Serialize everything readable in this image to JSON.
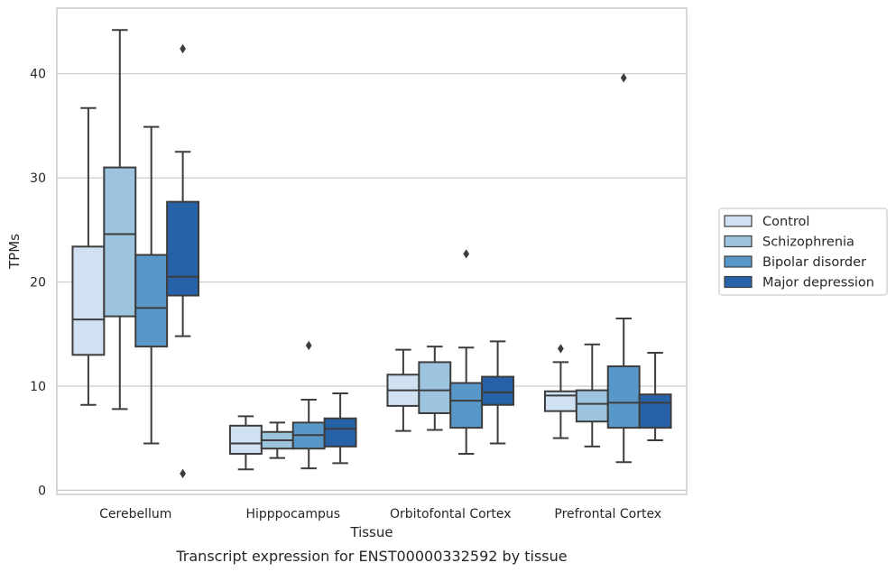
{
  "chart_data": {
    "type": "box",
    "title": "",
    "caption": "Transcript expression for ENST00000332592 by tissue",
    "xlabel": "Tissue",
    "ylabel": "TPMs",
    "ylim": [
      -0.4,
      46.3
    ],
    "yticks": [
      0,
      10,
      20,
      30,
      40
    ],
    "grid": "horizontal",
    "legend_position": "right",
    "categories": [
      "Cerebellum",
      "Hipppocampus",
      "Orbitofontal Cortex",
      "Prefrontal Cortex"
    ],
    "series": [
      {
        "name": "Control",
        "color": "#d0e1f2",
        "boxes": [
          {
            "whislo": 8.2,
            "q1": 13.0,
            "med": 16.4,
            "q3": 23.4,
            "whishi": 36.7,
            "fliers": []
          },
          {
            "whislo": 2.0,
            "q1": 3.5,
            "med": 4.5,
            "q3": 6.2,
            "whishi": 7.1,
            "fliers": []
          },
          {
            "whislo": 5.7,
            "q1": 8.1,
            "med": 9.6,
            "q3": 11.1,
            "whishi": 13.5,
            "fliers": []
          },
          {
            "whislo": 5.0,
            "q1": 7.6,
            "med": 9.1,
            "q3": 9.5,
            "whishi": 12.3,
            "fliers": [
              13.6
            ]
          }
        ]
      },
      {
        "name": "Schizophrenia",
        "color": "#9cc4df",
        "boxes": [
          {
            "whislo": 7.8,
            "q1": 16.7,
            "med": 24.6,
            "q3": 31.0,
            "whishi": 44.2,
            "fliers": []
          },
          {
            "whislo": 3.1,
            "q1": 4.0,
            "med": 4.8,
            "q3": 5.6,
            "whishi": 6.5,
            "fliers": []
          },
          {
            "whislo": 5.8,
            "q1": 7.4,
            "med": 9.6,
            "q3": 12.3,
            "whishi": 13.8,
            "fliers": []
          },
          {
            "whislo": 4.2,
            "q1": 6.6,
            "med": 8.3,
            "q3": 9.6,
            "whishi": 14.0,
            "fliers": []
          }
        ]
      },
      {
        "name": "Bipolar disorder",
        "color": "#5798c8",
        "boxes": [
          {
            "whislo": 4.5,
            "q1": 13.8,
            "med": 17.5,
            "q3": 22.6,
            "whishi": 34.9,
            "fliers": []
          },
          {
            "whislo": 2.1,
            "q1": 4.0,
            "med": 5.3,
            "q3": 6.5,
            "whishi": 8.7,
            "fliers": [
              13.9
            ]
          },
          {
            "whislo": 3.5,
            "q1": 6.0,
            "med": 8.6,
            "q3": 10.3,
            "whishi": 13.7,
            "fliers": [
              22.7
            ]
          },
          {
            "whislo": 2.7,
            "q1": 6.0,
            "med": 8.4,
            "q3": 11.9,
            "whishi": 16.5,
            "fliers": [
              39.6
            ]
          }
        ]
      },
      {
        "name": "Major depression",
        "color": "#2662a8",
        "boxes": [
          {
            "whislo": 14.8,
            "q1": 18.7,
            "med": 20.5,
            "q3": 27.7,
            "whishi": 32.5,
            "fliers": [
              42.4,
              1.6
            ]
          },
          {
            "whislo": 2.6,
            "q1": 4.2,
            "med": 5.9,
            "q3": 6.9,
            "whishi": 9.3,
            "fliers": []
          },
          {
            "whislo": 4.5,
            "q1": 8.2,
            "med": 9.4,
            "q3": 10.9,
            "whishi": 14.3,
            "fliers": []
          },
          {
            "whislo": 4.8,
            "q1": 6.0,
            "med": 8.4,
            "q3": 9.2,
            "whishi": 13.2,
            "fliers": []
          }
        ]
      }
    ]
  }
}
